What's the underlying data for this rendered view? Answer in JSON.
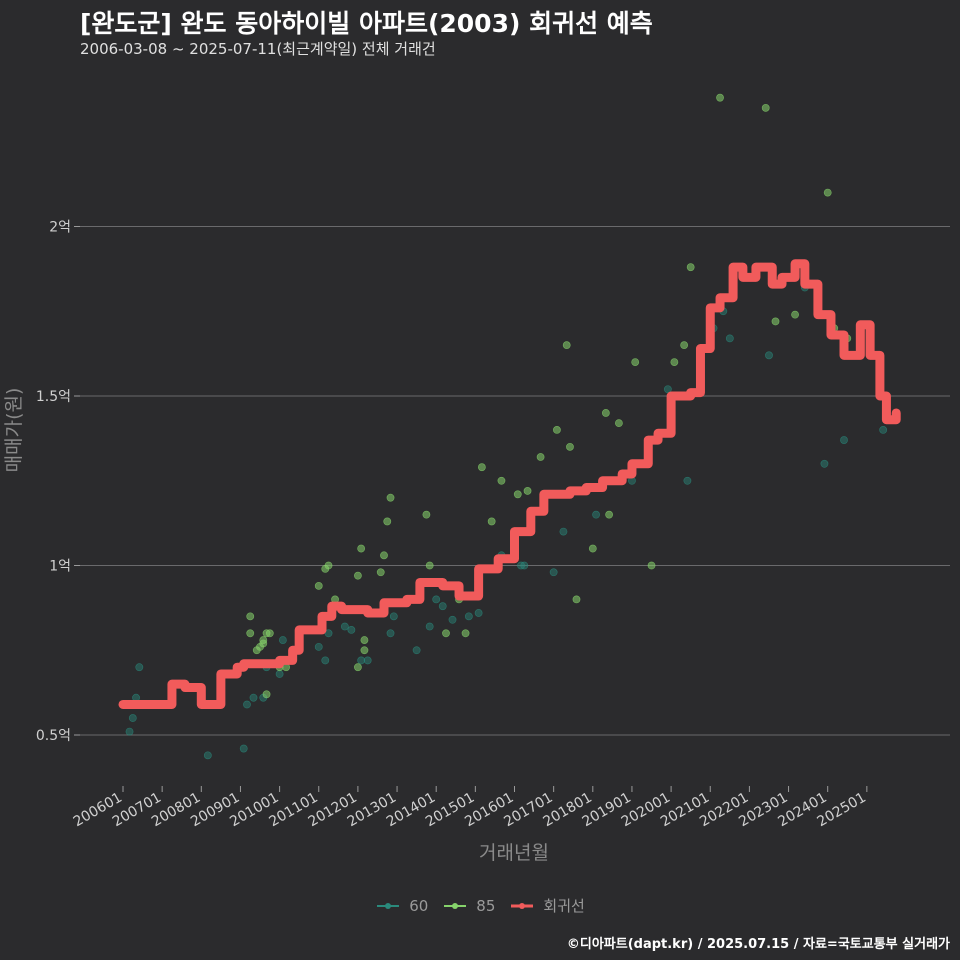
{
  "chart_data": {
    "type": "scatter",
    "title": "[완도군] 완도 동아하이빌 아파트(2003) 회귀선 예측",
    "subtitle": "2006-03-08 ~ 2025-07-11(최근계약일) 전체 거래건",
    "xlabel": "거래년월",
    "ylabel": "매매가(원)",
    "x_ticks": [
      "200601",
      "200701",
      "200801",
      "200901",
      "201001",
      "201101",
      "201201",
      "201301",
      "201401",
      "201501",
      "201601",
      "201701",
      "201801",
      "201901",
      "202001",
      "202101",
      "202201",
      "202301",
      "202401",
      "202501"
    ],
    "y_ticks": [
      {
        "value": 0.5,
        "label": "0.5억"
      },
      {
        "value": 1.0,
        "label": "1억"
      },
      {
        "value": 1.5,
        "label": "1.5억"
      },
      {
        "value": 2.0,
        "label": "2억"
      }
    ],
    "y_unit": "억",
    "ylim": [
      0.36,
      2.42
    ],
    "grid": "horizontal",
    "legend_position": "bottom",
    "colors": {
      "60": "#2a8a7c",
      "85": "#86d36b",
      "regression": "#f15b5b"
    },
    "series": [
      {
        "name": "60",
        "kind": "points",
        "points": [
          [
            "2006-03",
            0.51
          ],
          [
            "2006-04",
            0.55
          ],
          [
            "2006-05",
            0.61
          ],
          [
            "2006-06",
            0.7
          ],
          [
            "2008-03",
            0.44
          ],
          [
            "2009-02",
            0.46
          ],
          [
            "2009-03",
            0.59
          ],
          [
            "2009-05",
            0.61
          ],
          [
            "2009-08",
            0.61
          ],
          [
            "2009-09",
            0.7
          ],
          [
            "2010-01",
            0.68
          ],
          [
            "2010-02",
            0.78
          ],
          [
            "2011-01",
            0.76
          ],
          [
            "2011-03",
            0.72
          ],
          [
            "2011-04",
            0.8
          ],
          [
            "2011-09",
            0.82
          ],
          [
            "2011-11",
            0.81
          ],
          [
            "2012-02",
            0.72
          ],
          [
            "2012-04",
            0.72
          ],
          [
            "2012-11",
            0.8
          ],
          [
            "2012-12",
            0.85
          ],
          [
            "2013-07",
            0.75
          ],
          [
            "2013-11",
            0.82
          ],
          [
            "2014-01",
            0.9
          ],
          [
            "2014-03",
            0.88
          ],
          [
            "2014-06",
            0.84
          ],
          [
            "2015-02",
            0.86
          ],
          [
            "2015-09",
            1.03
          ],
          [
            "2016-03",
            1.0
          ],
          [
            "2016-04",
            1.0
          ],
          [
            "2017-01",
            0.98
          ],
          [
            "2017-04",
            1.1
          ],
          [
            "2018-02",
            1.15
          ],
          [
            "2019-01",
            1.25
          ],
          [
            "2019-12",
            1.52
          ],
          [
            "2020-06",
            1.25
          ],
          [
            "2021-02",
            1.7
          ],
          [
            "2021-05",
            1.75
          ],
          [
            "2021-07",
            1.67
          ],
          [
            "2022-07",
            1.62
          ],
          [
            "2023-06",
            1.82
          ],
          [
            "2023-12",
            1.3
          ],
          [
            "2024-06",
            1.37
          ],
          [
            "2025-05",
            1.5
          ],
          [
            "2025-06",
            1.4
          ],
          [
            "2014-11",
            0.85
          ]
        ]
      },
      {
        "name": "85",
        "kind": "points",
        "points": [
          [
            "2009-04",
            0.85
          ],
          [
            "2009-04",
            0.8
          ],
          [
            "2009-06",
            0.75
          ],
          [
            "2009-07",
            0.76
          ],
          [
            "2009-08",
            0.77
          ],
          [
            "2009-08",
            0.78
          ],
          [
            "2009-09",
            0.8
          ],
          [
            "2009-10",
            0.8
          ],
          [
            "2009-09",
            0.62
          ],
          [
            "2010-01",
            0.7
          ],
          [
            "2010-03",
            0.7
          ],
          [
            "2011-01",
            0.94
          ],
          [
            "2011-03",
            0.99
          ],
          [
            "2011-04",
            1.0
          ],
          [
            "2011-06",
            0.9
          ],
          [
            "2012-01",
            0.97
          ],
          [
            "2012-03",
            0.78
          ],
          [
            "2012-03",
            0.75
          ],
          [
            "2012-01",
            0.7
          ],
          [
            "2012-02",
            1.05
          ],
          [
            "2012-08",
            0.98
          ],
          [
            "2012-09",
            1.03
          ],
          [
            "2012-10",
            1.13
          ],
          [
            "2012-11",
            1.2
          ],
          [
            "2013-10",
            1.15
          ],
          [
            "2013-11",
            1.0
          ],
          [
            "2014-04",
            0.8
          ],
          [
            "2014-08",
            0.9
          ],
          [
            "2014-10",
            0.8
          ],
          [
            "2015-03",
            1.29
          ],
          [
            "2015-06",
            1.13
          ],
          [
            "2015-09",
            1.25
          ],
          [
            "2016-02",
            1.21
          ],
          [
            "2016-05",
            1.22
          ],
          [
            "2016-09",
            1.32
          ],
          [
            "2017-02",
            1.4
          ],
          [
            "2017-05",
            1.65
          ],
          [
            "2017-06",
            1.35
          ],
          [
            "2017-08",
            0.9
          ],
          [
            "2018-01",
            1.05
          ],
          [
            "2018-05",
            1.45
          ],
          [
            "2018-06",
            1.15
          ],
          [
            "2018-09",
            1.42
          ],
          [
            "2019-02",
            1.6
          ],
          [
            "2019-07",
            1.0
          ],
          [
            "2020-02",
            1.6
          ],
          [
            "2020-05",
            1.65
          ],
          [
            "2020-07",
            1.88
          ],
          [
            "2021-04",
            2.38
          ],
          [
            "2022-06",
            2.35
          ],
          [
            "2022-09",
            1.72
          ],
          [
            "2023-03",
            1.74
          ],
          [
            "2024-01",
            2.1
          ],
          [
            "2024-03",
            1.7
          ],
          [
            "2024-09",
            1.62
          ],
          [
            "2024-07",
            1.67
          ]
        ]
      },
      {
        "name": "회귀선",
        "kind": "line",
        "points": [
          [
            "2006-01",
            0.59
          ],
          [
            "2007-02",
            0.59
          ],
          [
            "2007-04",
            0.65
          ],
          [
            "2007-08",
            0.64
          ],
          [
            "2008-01",
            0.59
          ],
          [
            "2008-06",
            0.59
          ],
          [
            "2008-07",
            0.68
          ],
          [
            "2008-12",
            0.7
          ],
          [
            "2009-02",
            0.71
          ],
          [
            "2010-01",
            0.72
          ],
          [
            "2010-05",
            0.75
          ],
          [
            "2010-07",
            0.81
          ],
          [
            "2011-02",
            0.85
          ],
          [
            "2011-05",
            0.88
          ],
          [
            "2011-08",
            0.87
          ],
          [
            "2012-04",
            0.86
          ],
          [
            "2012-09",
            0.89
          ],
          [
            "2013-04",
            0.9
          ],
          [
            "2013-08",
            0.95
          ],
          [
            "2014-03",
            0.94
          ],
          [
            "2014-08",
            0.91
          ],
          [
            "2015-02",
            0.99
          ],
          [
            "2015-08",
            1.02
          ],
          [
            "2016-01",
            1.1
          ],
          [
            "2016-06",
            1.16
          ],
          [
            "2016-10",
            1.21
          ],
          [
            "2017-06",
            1.22
          ],
          [
            "2017-11",
            1.23
          ],
          [
            "2018-04",
            1.25
          ],
          [
            "2018-10",
            1.27
          ],
          [
            "2019-01",
            1.3
          ],
          [
            "2019-06",
            1.37
          ],
          [
            "2019-09",
            1.39
          ],
          [
            "2020-01",
            1.5
          ],
          [
            "2020-07",
            1.51
          ],
          [
            "2020-10",
            1.64
          ],
          [
            "2021-01",
            1.76
          ],
          [
            "2021-04",
            1.79
          ],
          [
            "2021-08",
            1.88
          ],
          [
            "2021-11",
            1.85
          ],
          [
            "2022-03",
            1.88
          ],
          [
            "2022-08",
            1.83
          ],
          [
            "2022-11",
            1.85
          ],
          [
            "2023-03",
            1.89
          ],
          [
            "2023-06",
            1.83
          ],
          [
            "2023-10",
            1.74
          ],
          [
            "2024-02",
            1.68
          ],
          [
            "2024-06",
            1.62
          ],
          [
            "2024-09",
            1.62
          ],
          [
            "2024-11",
            1.71
          ],
          [
            "2025-02",
            1.62
          ],
          [
            "2025-05",
            1.5
          ],
          [
            "2025-07",
            1.43
          ],
          [
            "2025-10",
            1.45
          ]
        ]
      }
    ]
  },
  "legend": {
    "items": [
      {
        "label": "60",
        "color": "#2a8a7c",
        "kind": "point"
      },
      {
        "label": "85",
        "color": "#86d36b",
        "kind": "point"
      },
      {
        "label": "회귀선",
        "color": "#f15b5b",
        "kind": "line"
      }
    ]
  },
  "footer": {
    "source": "©디아파트(dapt.kr) / 2025.07.15 / 자료=국토교통부 실거래가"
  }
}
